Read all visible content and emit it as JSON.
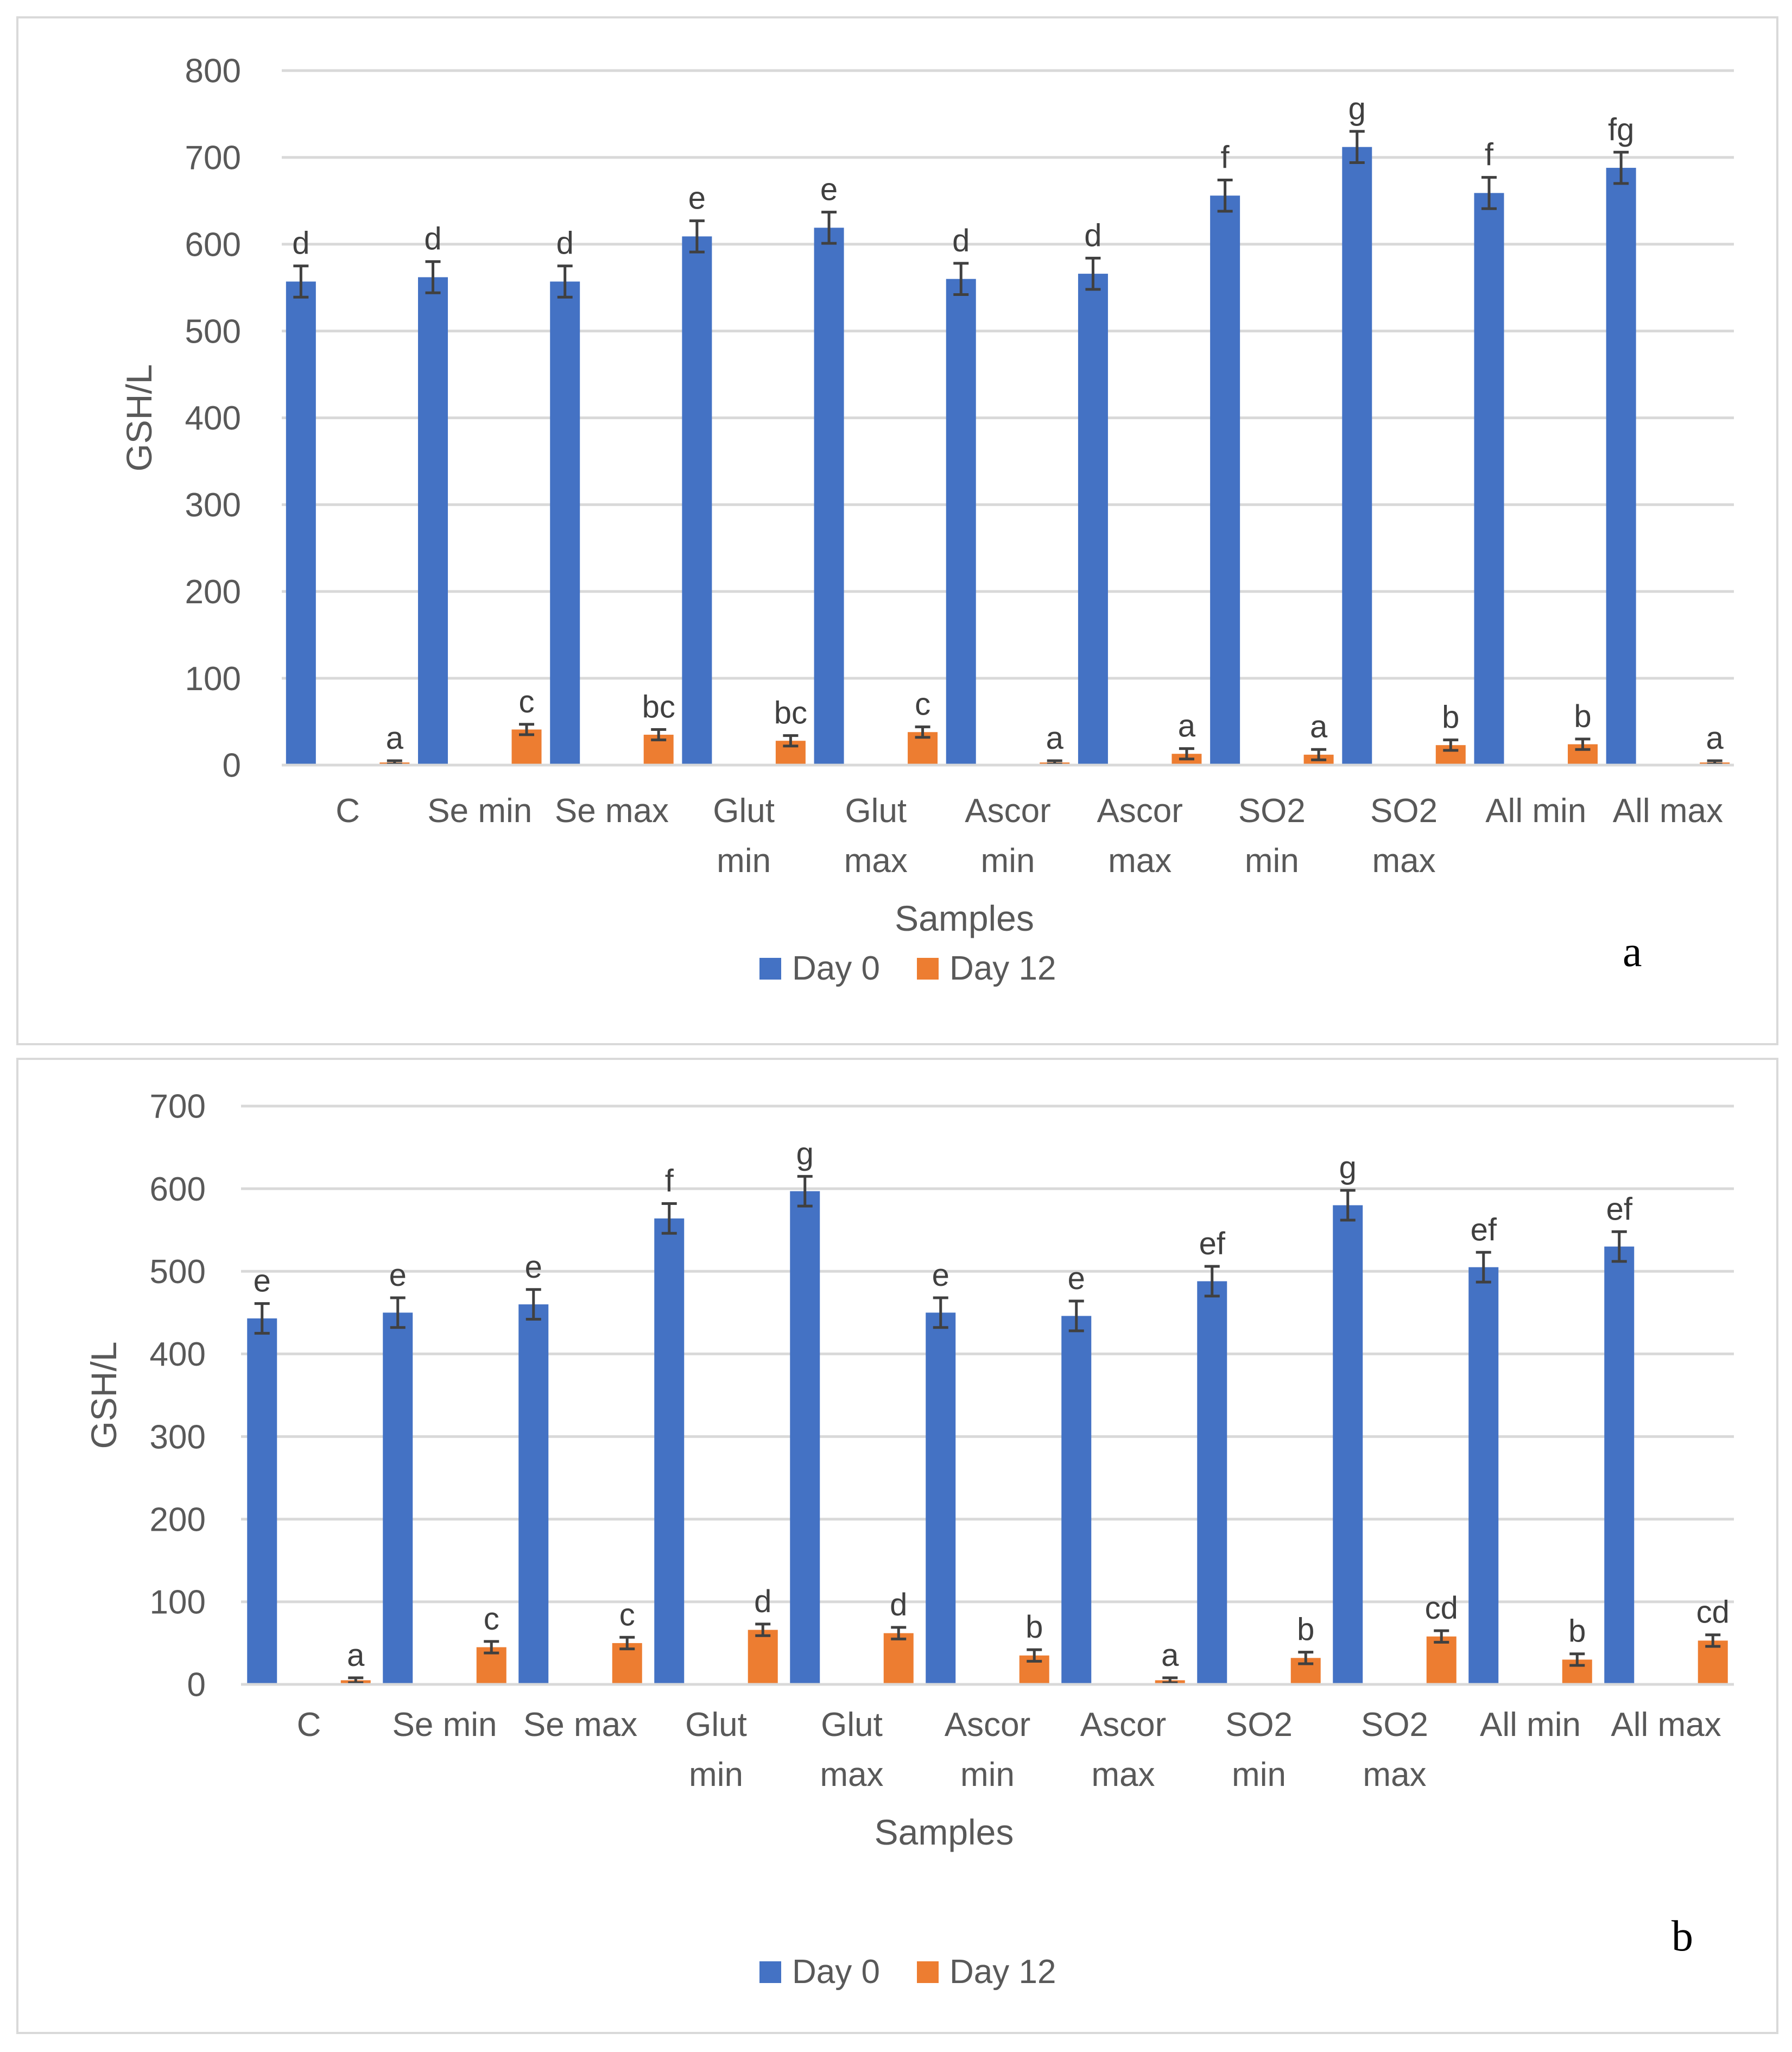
{
  "chart_data": [
    {
      "id": "a",
      "type": "bar",
      "panel_label": "a",
      "xlabel": "Samples",
      "ylabel": "GSH/L",
      "ylim": [
        0,
        800
      ],
      "yticks": [
        0,
        100,
        200,
        300,
        400,
        500,
        600,
        700,
        800
      ],
      "grid": true,
      "legend_position": "bottom",
      "categories": [
        [
          "C"
        ],
        [
          "Se min"
        ],
        [
          "Se max"
        ],
        [
          "Glut",
          "min"
        ],
        [
          "Glut",
          "max"
        ],
        [
          "Ascor",
          "min"
        ],
        [
          "Ascor",
          "max"
        ],
        [
          "SO2",
          "min"
        ],
        [
          "SO2",
          "max"
        ],
        [
          "All min"
        ],
        [
          "All max"
        ]
      ],
      "series": [
        {
          "name": "Day 0",
          "color": "#4472c4",
          "values": [
            557,
            562,
            557,
            609,
            619,
            560,
            566,
            656,
            712,
            659,
            688
          ],
          "errors": [
            18,
            18,
            18,
            18,
            18,
            18,
            18,
            18,
            18,
            18,
            18
          ],
          "letters": [
            "d",
            "d",
            "d",
            "e",
            "e",
            "d",
            "d",
            "f",
            "g",
            "f",
            "fg"
          ]
        },
        {
          "name": "Day 12",
          "color": "#ed7d31",
          "values": [
            3,
            41,
            35,
            28,
            38,
            3,
            13,
            12,
            23,
            24,
            3
          ],
          "errors": [
            2,
            6,
            6,
            6,
            6,
            2,
            6,
            6,
            6,
            6,
            2
          ],
          "letters": [
            "a",
            "c",
            "bc",
            "bc",
            "c",
            "a",
            "a",
            "a",
            "b",
            "b",
            "a"
          ]
        }
      ]
    },
    {
      "id": "b",
      "type": "bar",
      "panel_label": "b",
      "xlabel": "Samples",
      "ylabel": "GSH/L",
      "ylim": [
        0,
        700
      ],
      "yticks": [
        0,
        100,
        200,
        300,
        400,
        500,
        600,
        700
      ],
      "grid": true,
      "legend_position": "bottom",
      "categories": [
        [
          "C"
        ],
        [
          "Se min"
        ],
        [
          "Se max"
        ],
        [
          "Glut",
          "min"
        ],
        [
          "Glut",
          "max"
        ],
        [
          "Ascor",
          "min"
        ],
        [
          "Ascor",
          "max"
        ],
        [
          "SO2",
          "min"
        ],
        [
          "SO2",
          "max"
        ],
        [
          "All min"
        ],
        [
          "All max"
        ]
      ],
      "series": [
        {
          "name": "Day 0",
          "color": "#4472c4",
          "values": [
            443,
            450,
            460,
            564,
            597,
            450,
            446,
            488,
            580,
            505,
            530
          ],
          "errors": [
            18,
            18,
            18,
            18,
            18,
            18,
            18,
            18,
            18,
            18,
            18
          ],
          "letters": [
            "e",
            "e",
            "e",
            "f",
            "g",
            "e",
            "e",
            "ef",
            "g",
            "ef",
            "ef"
          ]
        },
        {
          "name": "Day 12",
          "color": "#ed7d31",
          "values": [
            5,
            45,
            50,
            66,
            62,
            35,
            5,
            32,
            58,
            30,
            53
          ],
          "errors": [
            3,
            7,
            7,
            7,
            7,
            7,
            3,
            7,
            7,
            7,
            7
          ],
          "letters": [
            "a",
            "c",
            "c",
            "d",
            "d",
            "b",
            "a",
            "b",
            "cd",
            "b",
            "cd"
          ]
        }
      ]
    }
  ]
}
